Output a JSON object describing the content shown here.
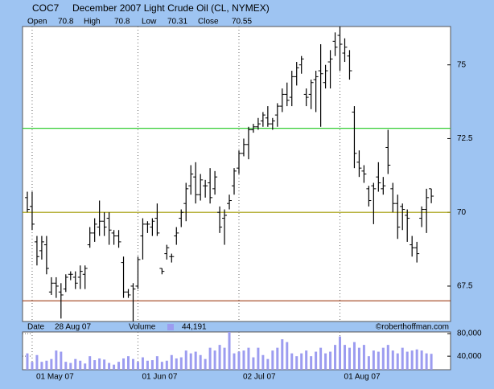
{
  "chart_data": {
    "type": "ohlc",
    "symbol": "COC7",
    "title": "December 2007 Light Crude Oil (CL, NYMEX)",
    "categories": [
      null,
      "01 May 07",
      null,
      null,
      null,
      null,
      null,
      null,
      null,
      null,
      null,
      null,
      null,
      null,
      null,
      null,
      null,
      null,
      null,
      null,
      null,
      null,
      null,
      "01 Jun 07",
      null,
      null,
      null,
      null,
      null,
      null,
      null,
      null,
      null,
      null,
      null,
      null,
      null,
      null,
      null,
      null,
      null,
      null,
      null,
      null,
      "02 Jul 07",
      null,
      null,
      null,
      null,
      null,
      null,
      null,
      null,
      null,
      null,
      null,
      null,
      null,
      null,
      null,
      null,
      null,
      null,
      null,
      null,
      "01 Aug 07",
      null,
      null,
      null,
      null,
      null,
      null,
      null,
      null,
      null,
      null,
      null,
      null,
      null,
      null,
      null,
      null,
      null,
      null,
      null
    ],
    "open": {
      "name": "Open",
      "values": [
        70.5,
        70.2,
        69.0,
        68.7,
        68.9,
        67.3,
        67.6,
        67.3,
        67.4,
        67.9,
        67.8,
        67.8,
        67.9,
        68.9,
        69.3,
        69.5,
        69.7,
        69.8,
        69.3,
        69.2,
        68.3,
        67.3,
        67.5,
        67.5,
        69.2,
        69.6,
        69.5,
        69.8,
        68.1,
        68.6,
        68.5,
        69.2,
        69.8,
        70.3,
        70.9,
        71.2,
        70.6,
        70.9,
        71.0,
        70.8,
        70.0,
        69.8,
        70.3,
        70.9,
        71.5,
        72.0,
        72.3,
        72.8,
        72.9,
        73.1,
        73.2,
        73.0,
        73.3,
        73.6,
        74.0,
        73.9,
        74.6,
        75.0,
        74.0,
        74.0,
        74.5,
        74.8,
        74.4,
        75.1,
        75.8,
        76.0,
        75.4,
        75.3,
        73.4,
        71.7,
        71.4,
        70.8,
        70.9,
        71.2,
        70.8,
        72.2,
        70.8,
        70.3,
        70.2,
        69.9,
        68.9,
        68.8,
        69.8,
        70.1,
        70.8
      ]
    },
    "high": {
      "name": "High",
      "values": [
        70.7,
        70.7,
        69.2,
        69.2,
        69.2,
        67.8,
        67.8,
        67.6,
        67.9,
        68.0,
        68.0,
        68.2,
        68.2,
        69.5,
        69.8,
        70.4,
        70.0,
        70.0,
        69.4,
        69.4,
        68.5,
        67.4,
        67.6,
        68.5,
        69.8,
        69.7,
        69.8,
        70.3,
        68.1,
        68.9,
        68.6,
        69.5,
        70.1,
        71.0,
        71.6,
        71.7,
        71.3,
        71.1,
        71.5,
        71.4,
        70.2,
        70.1,
        70.6,
        71.5,
        72.1,
        72.5,
        72.9,
        73.0,
        73.2,
        73.4,
        73.6,
        73.2,
        73.7,
        74.2,
        74.4,
        74.8,
        75.1,
        75.3,
        74.2,
        74.5,
        74.8,
        75.7,
        75.0,
        75.5,
        76.1,
        76.3,
        75.9,
        75.5,
        73.6,
        72.1,
        71.6,
        70.9,
        71.0,
        71.7,
        71.2,
        72.8,
        71.0,
        70.6,
        70.3,
        70.1,
        69.2,
        69.0,
        70.2,
        70.8,
        70.8
      ]
    },
    "low": {
      "name": "Low",
      "values": [
        70.0,
        69.4,
        68.2,
        68.4,
        67.9,
        67.2,
        67.1,
        66.4,
        67.3,
        67.7,
        67.4,
        67.4,
        67.4,
        68.8,
        69.0,
        69.2,
        69.2,
        68.9,
        68.9,
        68.8,
        67.1,
        67.1,
        66.3,
        67.4,
        68.4,
        69.3,
        69.2,
        69.2,
        67.9,
        68.4,
        68.3,
        68.9,
        69.5,
        69.7,
        70.6,
        70.3,
        70.4,
        70.5,
        70.3,
        70.6,
        69.3,
        68.9,
        70.1,
        70.6,
        71.3,
        71.9,
        71.8,
        72.7,
        72.8,
        72.9,
        72.9,
        72.8,
        72.9,
        73.4,
        73.6,
        73.6,
        74.3,
        74.7,
        73.6,
        73.5,
        73.4,
        72.9,
        74.2,
        74.2,
        75.3,
        74.8,
        75.1,
        74.5,
        71.5,
        71.2,
        71.0,
        70.2,
        69.6,
        70.7,
        70.6,
        71.3,
        70.0,
        69.1,
        69.4,
        69.0,
        68.5,
        68.3,
        69.5,
        69.3,
        70.31
      ]
    },
    "close": {
      "name": "Close",
      "values": [
        70.1,
        69.6,
        68.5,
        69.0,
        68.1,
        67.6,
        67.5,
        67.2,
        67.8,
        67.9,
        67.6,
        68.0,
        68.1,
        69.3,
        69.6,
        69.7,
        69.5,
        69.4,
        69.2,
        69.0,
        67.3,
        67.2,
        67.4,
        68.4,
        69.6,
        69.6,
        69.7,
        69.3,
        68.0,
        68.8,
        68.5,
        69.3,
        70.0,
        70.8,
        71.3,
        70.6,
        71.1,
        70.9,
        70.5,
        71.2,
        69.5,
        69.9,
        70.4,
        71.4,
        72.0,
        72.3,
        72.8,
        72.9,
        73.0,
        73.3,
        73.0,
        73.1,
        73.6,
        74.0,
        73.8,
        74.6,
        74.9,
        75.2,
        73.9,
        74.4,
        74.6,
        74.7,
        74.8,
        75.2,
        75.6,
        75.7,
        75.6,
        74.8,
        72.0,
        71.5,
        71.3,
        70.4,
        70.8,
        71.0,
        70.9,
        71.6,
        70.3,
        69.5,
        70.1,
        69.8,
        68.8,
        68.6,
        70.1,
        70.5,
        70.55
      ]
    },
    "color": "#000000",
    "ylim": [
      66.3,
      76.3
    ],
    "yticks": [
      67.5,
      70,
      72.5,
      75
    ],
    "hlines": [
      {
        "value": 72.85,
        "color": "#33cc33"
      },
      {
        "value": 70,
        "color": "#a09a00"
      },
      {
        "value": 67,
        "color": "#a0401a"
      }
    ],
    "date_label": "Date",
    "date": "28 Aug 07",
    "watermark": "©roberthoffman.com",
    "volume": {
      "name": "Volume",
      "color": "#9c9cf0",
      "last_label": "44,191",
      "values": [
        45000,
        30000,
        42000,
        30000,
        32000,
        35000,
        50000,
        48000,
        30000,
        28000,
        35000,
        32000,
        27000,
        40000,
        33000,
        36000,
        34000,
        28000,
        25000,
        30000,
        36000,
        40000,
        35000,
        30000,
        38000,
        32000,
        33000,
        40000,
        30000,
        32000,
        42000,
        36000,
        38000,
        50000,
        45000,
        48000,
        42000,
        35000,
        55000,
        50000,
        60000,
        55000,
        90000,
        45000,
        48000,
        50000,
        55000,
        38000,
        55000,
        42000,
        35000,
        50000,
        55000,
        70000,
        65000,
        45000,
        40000,
        45000,
        50000,
        40000,
        48000,
        55000,
        45000,
        48000,
        60000,
        75000,
        60000,
        55000,
        65000,
        55000,
        60000,
        40000,
        50000,
        48000,
        55000,
        60000,
        50000,
        45000,
        55000,
        48000,
        50000,
        52000,
        50000,
        45000,
        44191
      ],
      "ylim": [
        16000,
        83000
      ],
      "yticks": [
        {
          "value": 40000,
          "label": "40,000"
        },
        {
          "value": 80000,
          "label": "80,000"
        }
      ]
    }
  }
}
